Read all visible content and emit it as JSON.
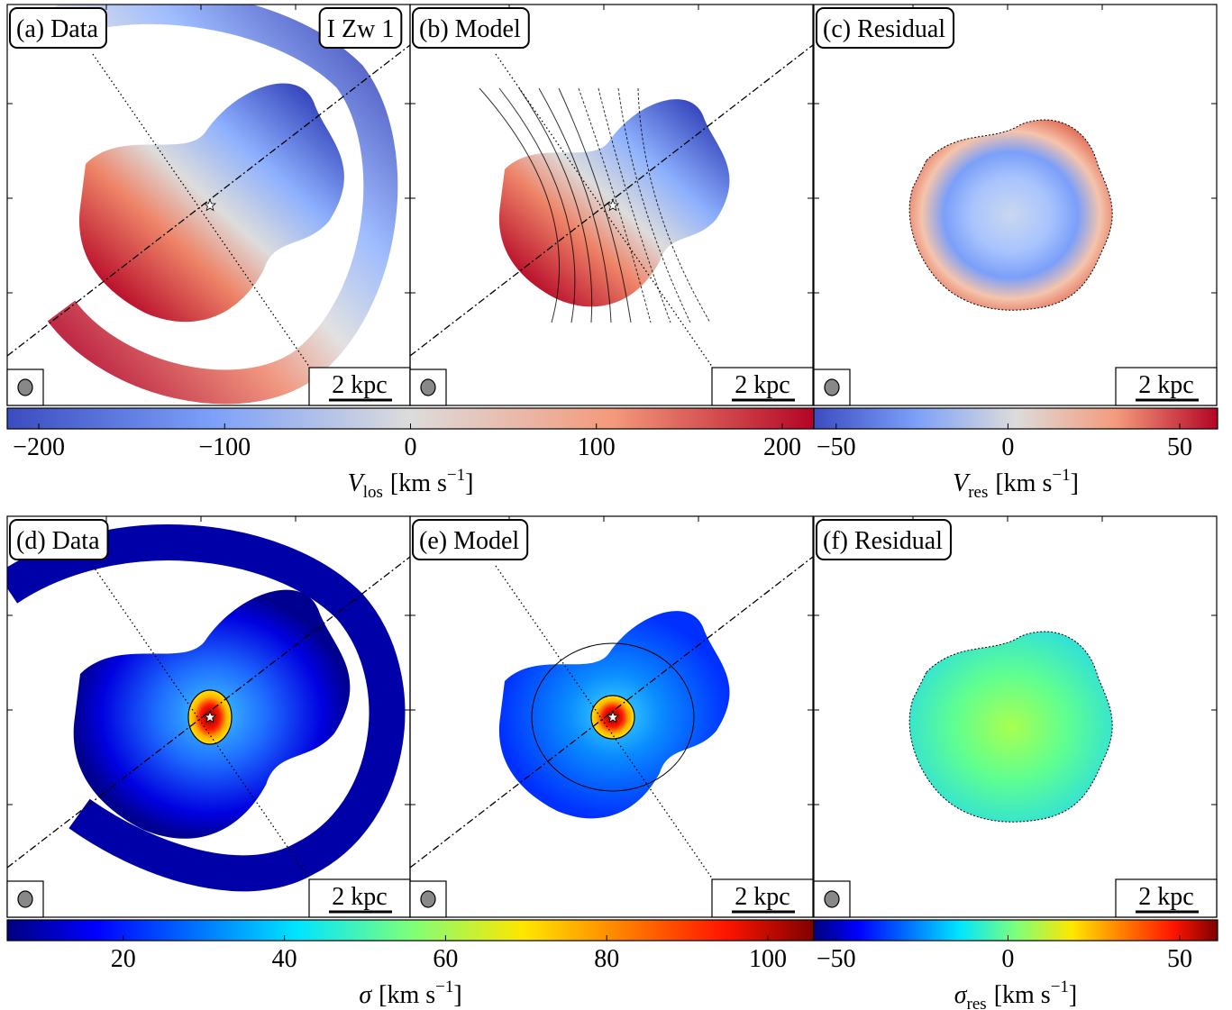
{
  "figure": {
    "object": "I Zw 1",
    "scalebar": "2 kpc",
    "panels": [
      {
        "label": "(a) Data"
      },
      {
        "label": "(b) Model"
      },
      {
        "label": "(c) Residual"
      },
      {
        "label": "(d) Data"
      },
      {
        "label": "(e) Model"
      },
      {
        "label": "(f) Residual"
      }
    ],
    "colorbars": [
      {
        "colormap": "coolwarm",
        "lim": [
          -217,
          217
        ],
        "ticks": [
          {
            "value": -200,
            "label": "−200"
          },
          {
            "value": -100,
            "label": "−100"
          },
          0,
          100,
          200
        ],
        "title": {
          "symbol": "V",
          "sub": "los",
          "unit": "[km s",
          "sup": "−1",
          "close": "]"
        }
      },
      {
        "colormap": "coolwarm",
        "lim": [
          -56.5,
          61
        ],
        "ticks": [
          {
            "value": -50,
            "label": "−50"
          },
          0,
          50
        ],
        "title": {
          "symbol": "V",
          "sub": "res",
          "unit": "[km s",
          "sup": "−1",
          "close": "]"
        }
      },
      {
        "colormap": "jet",
        "lim": [
          5.6,
          105.7
        ],
        "ticks": [
          20,
          40,
          60,
          80,
          100
        ],
        "title": {
          "symbol": "σ",
          "unit": "[km s",
          "sup": "−1",
          "close": "]"
        }
      },
      {
        "colormap": "jet",
        "lim": [
          -56.5,
          61
        ],
        "ticks": [
          {
            "value": -50,
            "label": "−50"
          },
          0,
          50
        ],
        "title": {
          "symbol": "σ",
          "sub": "res",
          "unit": "[km s",
          "sup": "−1",
          "close": "]"
        }
      }
    ]
  }
}
